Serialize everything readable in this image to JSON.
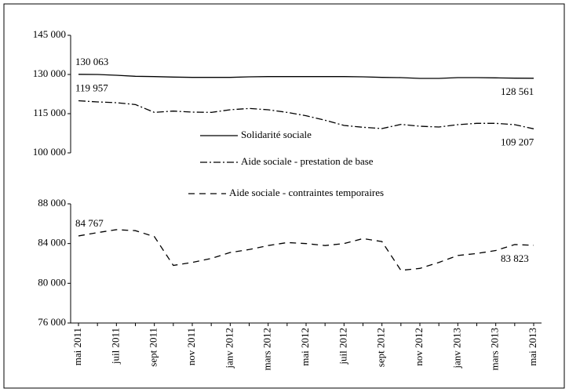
{
  "chart_data": [
    {
      "type": "line",
      "ylim": [
        100000,
        145000
      ],
      "yticks": [
        {
          "value": 100000,
          "label": "100 000"
        },
        {
          "value": 115000,
          "label": "115 000"
        },
        {
          "value": 130000,
          "label": "130 000"
        },
        {
          "value": 145000,
          "label": "145 000"
        }
      ],
      "series": [
        {
          "name": "Solidarité sociale",
          "color": "#000000",
          "line_style": "solid",
          "values": [
            130063,
            130000,
            129700,
            129300,
            129200,
            129000,
            128900,
            128900,
            128900,
            129100,
            129200,
            129200,
            129200,
            129200,
            129200,
            129100,
            128900,
            128800,
            128500,
            128500,
            128800,
            128800,
            128700,
            128600,
            128561
          ],
          "value_labels": [
            "130 063",
            null,
            null,
            null,
            null,
            null,
            null,
            null,
            null,
            null,
            null,
            null,
            null,
            null,
            null,
            null,
            null,
            null,
            null,
            null,
            null,
            null,
            null,
            null,
            "128 561"
          ]
        },
        {
          "name": "Aide sociale - prestation de base",
          "color": "#000000",
          "line_style": "dash-dot",
          "values": [
            119957,
            119500,
            119200,
            118500,
            115500,
            116000,
            115600,
            115500,
            116500,
            117000,
            116500,
            115500,
            114200,
            112500,
            110500,
            109800,
            109300,
            110900,
            110200,
            109900,
            110800,
            111300,
            111300,
            110800,
            109207
          ],
          "value_labels": [
            "119 957",
            null,
            null,
            null,
            null,
            null,
            null,
            null,
            null,
            null,
            null,
            null,
            null,
            null,
            null,
            null,
            null,
            null,
            null,
            null,
            null,
            null,
            null,
            null,
            "109 207"
          ]
        }
      ]
    },
    {
      "type": "line",
      "categories": [
        "mai 2011",
        null,
        "juil 2011",
        null,
        "sept 2011",
        null,
        "nov 2011",
        null,
        "janv 2012",
        null,
        "mars 2012",
        null,
        "mai 2012",
        null,
        "juil 2012",
        null,
        "sept 2012",
        null,
        "nov 2012",
        null,
        "janv 2013",
        null,
        "mars 2013",
        null,
        "mai 2013"
      ],
      "ylim": [
        76000,
        88000
      ],
      "yticks": [
        {
          "value": 76000,
          "label": "76 000"
        },
        {
          "value": 80000,
          "label": "80 000"
        },
        {
          "value": 84000,
          "label": "84 000"
        },
        {
          "value": 88000,
          "label": "88 000"
        }
      ],
      "series": [
        {
          "name": "Aide sociale - contraintes temporaires",
          "color": "#000000",
          "line_style": "dashed",
          "values": [
            84767,
            85100,
            85400,
            85300,
            84700,
            81800,
            82100,
            82500,
            83100,
            83400,
            83800,
            84100,
            84000,
            83800,
            84000,
            84500,
            84200,
            81300,
            81500,
            82100,
            82800,
            83000,
            83300,
            83900,
            83823
          ],
          "value_labels": [
            "84 767",
            null,
            null,
            null,
            null,
            null,
            null,
            null,
            null,
            null,
            null,
            null,
            null,
            null,
            null,
            null,
            null,
            null,
            null,
            null,
            null,
            null,
            null,
            null,
            "83 823"
          ]
        }
      ]
    }
  ]
}
